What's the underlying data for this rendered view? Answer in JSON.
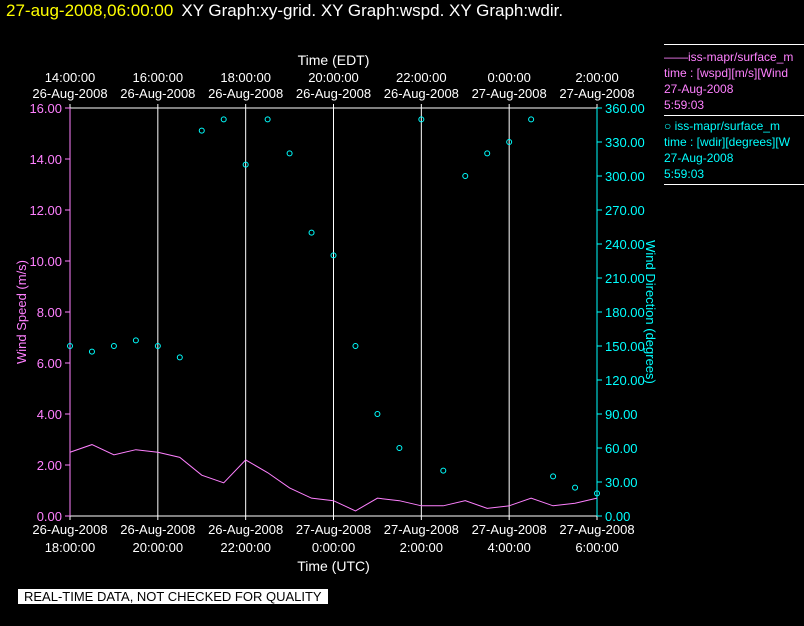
{
  "header": {
    "timestamp": "27-aug-2008,06:00:00",
    "title": "XY Graph:xy-grid.  XY Graph:wspd.  XY Graph:wdir."
  },
  "legend": {
    "series1_name": "iss-mapr/surface_m",
    "series1_var": "time : [wspd][m/s][Wind",
    "series1_date": "27-Aug-2008",
    "series1_time": "5:59:03",
    "series2_name": "iss-mapr/surface_m",
    "series2_var": "time : [wdir][degrees][W",
    "series2_date": "27-Aug-2008",
    "series2_time": "5:59:03"
  },
  "footer": "REAL-TIME DATA, NOT CHECKED FOR QUALITY",
  "colors": {
    "wspd": "#ff80ff",
    "wdir": "#00ffff",
    "axis": "#ffffff",
    "bg": "#000000"
  },
  "chart_data": {
    "type": "line",
    "xlabel_bottom": "Time (UTC)",
    "xlabel_top": "Time (EDT)",
    "ylabel_left": "Wind Speed (m/s)",
    "ylabel_right": "Wind Direction (degrees)",
    "ylim_left": [
      0,
      16
    ],
    "ylim_right": [
      0,
      360
    ],
    "xlim_hours_utc": [
      18,
      30
    ],
    "grid": true,
    "bottom_ticks": [
      {
        "date": "26-Aug-2008",
        "time": "18:00:00"
      },
      {
        "date": "26-Aug-2008",
        "time": "20:00:00"
      },
      {
        "date": "26-Aug-2008",
        "time": "22:00:00"
      },
      {
        "date": "27-Aug-2008",
        "time": "0:00:00"
      },
      {
        "date": "27-Aug-2008",
        "time": "2:00:00"
      },
      {
        "date": "27-Aug-2008",
        "time": "4:00:00"
      },
      {
        "date": "27-Aug-2008",
        "time": "6:00:00"
      }
    ],
    "top_ticks": [
      {
        "time": "14:00:00",
        "date": "26-Aug-2008"
      },
      {
        "time": "16:00:00",
        "date": "26-Aug-2008"
      },
      {
        "time": "18:00:00",
        "date": "26-Aug-2008"
      },
      {
        "time": "20:00:00",
        "date": "26-Aug-2008"
      },
      {
        "time": "22:00:00",
        "date": "26-Aug-2008"
      },
      {
        "time": "0:00:00",
        "date": "27-Aug-2008"
      },
      {
        "time": "2:00:00",
        "date": "27-Aug-2008"
      }
    ],
    "left_ticks": [
      "0.00",
      "2.00",
      "4.00",
      "6.00",
      "8.00",
      "10.00",
      "12.00",
      "14.00",
      "16.00"
    ],
    "right_ticks": [
      "0.00",
      "30.00",
      "60.00",
      "90.00",
      "120.00",
      "150.00",
      "180.00",
      "210.00",
      "240.00",
      "270.00",
      "300.00",
      "330.00",
      "360.00"
    ],
    "series": [
      {
        "key": "wspd",
        "style": "line",
        "x": [
          18.0,
          18.5,
          19.0,
          19.5,
          20.0,
          20.5,
          21.0,
          21.5,
          22.0,
          22.5,
          23.0,
          23.5,
          24.0,
          24.5,
          25.0,
          25.5,
          26.0,
          26.5,
          27.0,
          27.5,
          28.0,
          28.5,
          29.0,
          29.5,
          30.0
        ],
        "y": [
          2.5,
          2.8,
          2.4,
          2.6,
          2.5,
          2.3,
          1.6,
          1.3,
          2.2,
          1.7,
          1.1,
          0.7,
          0.6,
          0.2,
          0.7,
          0.6,
          0.4,
          0.4,
          0.6,
          0.3,
          0.4,
          0.7,
          0.4,
          0.5,
          0.7
        ]
      },
      {
        "key": "wdir",
        "style": "markers",
        "x": [
          18.0,
          18.5,
          19.0,
          19.5,
          20.0,
          20.5,
          21.0,
          21.5,
          22.0,
          22.5,
          23.0,
          23.5,
          24.0,
          24.5,
          25.0,
          25.5,
          26.0,
          26.5,
          27.0,
          27.5,
          28.0,
          28.5,
          29.0,
          29.5,
          30.0
        ],
        "y": [
          150,
          145,
          150,
          155,
          150,
          140,
          340,
          350,
          310,
          350,
          320,
          250,
          230,
          150,
          90,
          60,
          350,
          40,
          300,
          320,
          330,
          350,
          35,
          25,
          20
        ]
      }
    ]
  }
}
